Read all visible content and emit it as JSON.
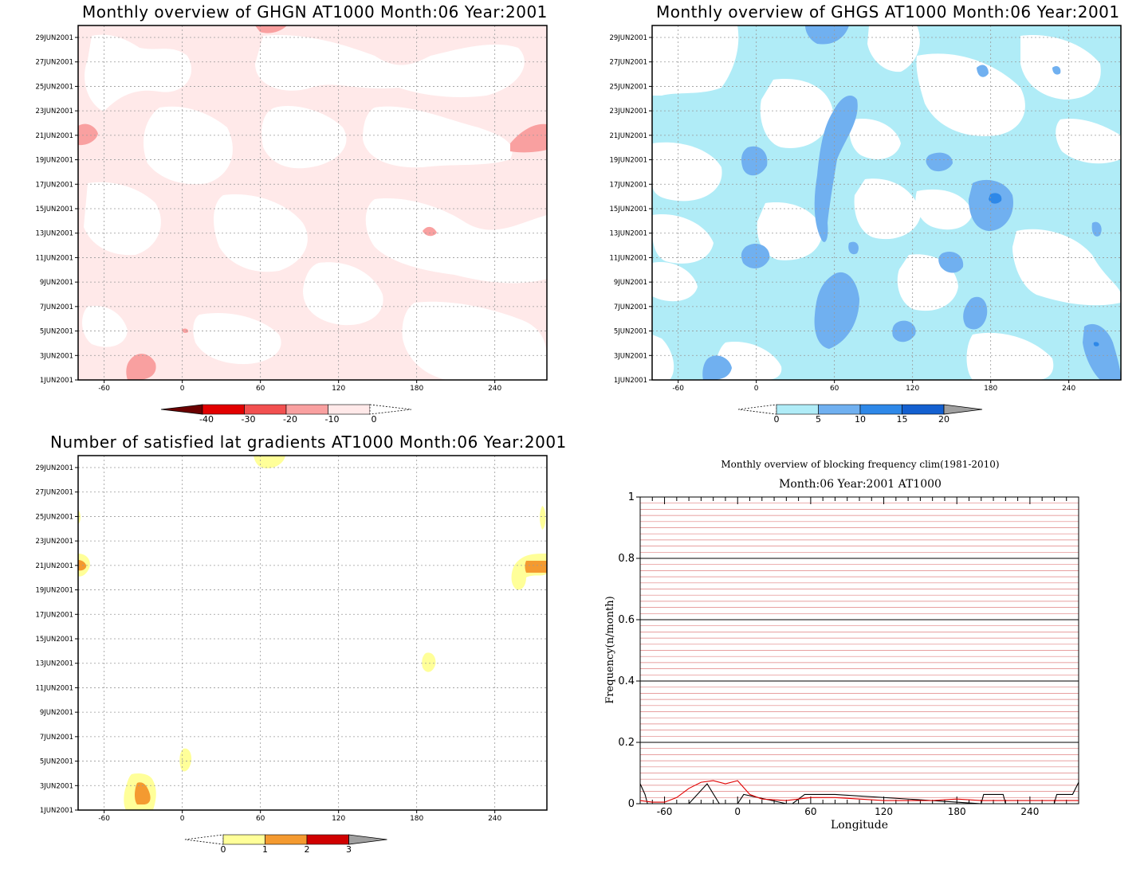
{
  "panels": [
    {
      "id": "ghgn",
      "title": "Monthly overview of GHGN AT1000 Month:06 Year:2001",
      "y_labels": [
        "1JUN2001",
        "3JUN2001",
        "5JUN2001",
        "7JUN2001",
        "9JUN2001",
        "11JUN2001",
        "13JUN2001",
        "15JUN2001",
        "17JUN2001",
        "19JUN2001",
        "21JUN2001",
        "23JUN2001",
        "25JUN2001",
        "27JUN2001",
        "29JUN2001"
      ],
      "x_labels": [
        "-60",
        "0",
        "60",
        "120",
        "180",
        "240"
      ],
      "colorbar": {
        "labels": [
          "-40",
          "-30",
          "-20",
          "-10",
          "0"
        ],
        "colors": [
          "#6b0000",
          "#e20000",
          "#f25050",
          "#f9a0a0",
          "#ffe9e9"
        ]
      }
    },
    {
      "id": "ghgs",
      "title": "Monthly overview of GHGS AT1000 Month:06 Year:2001",
      "y_labels": [
        "1JUN2001",
        "3JUN2001",
        "5JUN2001",
        "7JUN2001",
        "9JUN2001",
        "11JUN2001",
        "13JUN2001",
        "15JUN2001",
        "17JUN2001",
        "19JUN2001",
        "21JUN2001",
        "23JUN2001",
        "25JUN2001",
        "27JUN2001",
        "29JUN2001"
      ],
      "x_labels": [
        "-60",
        "0",
        "60",
        "120",
        "180",
        "240"
      ],
      "colorbar": {
        "labels": [
          "0",
          "5",
          "10",
          "15",
          "20"
        ],
        "colors": [
          "#b0ecf7",
          "#70b0f0",
          "#2e88e8",
          "#1460d0",
          "#a0a0a0"
        ]
      }
    },
    {
      "id": "gradients",
      "title": "Number of satisfied lat gradients AT1000 Month:06 Year:2001",
      "y_labels": [
        "1JUN2001",
        "3JUN2001",
        "5JUN2001",
        "7JUN2001",
        "9JUN2001",
        "11JUN2001",
        "13JUN2001",
        "15JUN2001",
        "17JUN2001",
        "19JUN2001",
        "21JUN2001",
        "23JUN2001",
        "25JUN2001",
        "27JUN2001",
        "29JUN2001"
      ],
      "x_labels": [
        "-60",
        "0",
        "60",
        "120",
        "180",
        "240"
      ],
      "colorbar": {
        "labels": [
          "0",
          "1",
          "2",
          "3"
        ],
        "colors": [
          "#ffff99",
          "#f49a30",
          "#d00000",
          "#a0a0a0"
        ]
      }
    }
  ],
  "chart_data": [
    {
      "type": "heatmap",
      "title": "Monthly overview of GHGN AT1000 Month:06 Year:2001",
      "x_ticks": [
        -60,
        0,
        60,
        120,
        180,
        240
      ],
      "xlim": [
        -80,
        280
      ],
      "y_ticks": [
        "1JUN2001",
        "3JUN2001",
        "5JUN2001",
        "7JUN2001",
        "9JUN2001",
        "11JUN2001",
        "13JUN2001",
        "15JUN2001",
        "17JUN2001",
        "19JUN2001",
        "21JUN2001",
        "23JUN2001",
        "25JUN2001",
        "27JUN2001",
        "29JUN2001"
      ],
      "color_levels": [
        -40,
        -30,
        -20,
        -10,
        0
      ],
      "grid": true
    },
    {
      "type": "heatmap",
      "title": "Monthly overview of GHGS AT1000 Month:06 Year:2001",
      "x_ticks": [
        -60,
        0,
        60,
        120,
        180,
        240
      ],
      "xlim": [
        -80,
        280
      ],
      "y_ticks": [
        "1JUN2001",
        "3JUN2001",
        "5JUN2001",
        "7JUN2001",
        "9JUN2001",
        "11JUN2001",
        "13JUN2001",
        "15JUN2001",
        "17JUN2001",
        "19JUN2001",
        "21JUN2001",
        "23JUN2001",
        "25JUN2001",
        "27JUN2001",
        "29JUN2001"
      ],
      "color_levels": [
        0,
        5,
        10,
        15,
        20
      ],
      "grid": true
    },
    {
      "type": "heatmap",
      "title": "Number of satisfied lat gradients AT1000 Month:06 Year:2001",
      "x_ticks": [
        -60,
        0,
        60,
        120,
        180,
        240
      ],
      "xlim": [
        -80,
        280
      ],
      "y_ticks": [
        "1JUN2001",
        "3JUN2001",
        "5JUN2001",
        "7JUN2001",
        "9JUN2001",
        "11JUN2001",
        "13JUN2001",
        "15JUN2001",
        "17JUN2001",
        "19JUN2001",
        "21JUN2001",
        "23JUN2001",
        "25JUN2001",
        "27JUN2001",
        "29JUN2001"
      ],
      "color_levels": [
        0,
        1,
        2,
        3
      ],
      "grid": true
    },
    {
      "type": "line",
      "title": "Monthly overview of blocking frequency clim(1981-2010)",
      "subtitle": "Month:06 Year:2001 AT1000",
      "xlabel": "Longitude",
      "ylabel": "Frequency(n/month)",
      "xlim": [
        -80,
        280
      ],
      "ylim": [
        0,
        1
      ],
      "x_ticks": [
        -60,
        0,
        60,
        120,
        180,
        240
      ],
      "y_ticks": [
        "0",
        "0.2",
        "0.4",
        "0.6",
        "0.8",
        "1"
      ],
      "grid": true,
      "series": [
        {
          "color": "#000000",
          "x": [
            -80,
            -76,
            -74,
            -60,
            -55,
            -40,
            -25,
            -15,
            0,
            5,
            40,
            45,
            55,
            60,
            75,
            80,
            200,
            202,
            205,
            215,
            218,
            220,
            260,
            262,
            265,
            275,
            280
          ],
          "y": [
            0.065,
            0.03,
            0.0,
            0.0,
            0.0,
            0.0,
            0.065,
            0.0,
            0.0,
            0.03,
            0.0,
            0.0,
            0.03,
            0.03,
            0.03,
            0.03,
            0.0,
            0.03,
            0.03,
            0.03,
            0.03,
            0.0,
            0.0,
            0.03,
            0.03,
            0.03,
            0.07
          ]
        },
        {
          "color": "#e00000",
          "x": [
            -80,
            -70,
            -60,
            -50,
            -40,
            -30,
            -20,
            -10,
            0,
            10,
            20,
            40,
            60,
            80,
            100,
            120,
            140,
            160,
            180,
            200,
            220,
            240,
            260,
            280
          ],
          "y": [
            0.01,
            0.005,
            0.005,
            0.02,
            0.05,
            0.07,
            0.075,
            0.065,
            0.075,
            0.03,
            0.015,
            0.01,
            0.02,
            0.02,
            0.015,
            0.01,
            0.01,
            0.01,
            0.015,
            0.01,
            0.01,
            0.01,
            0.01,
            0.01
          ]
        }
      ]
    }
  ]
}
